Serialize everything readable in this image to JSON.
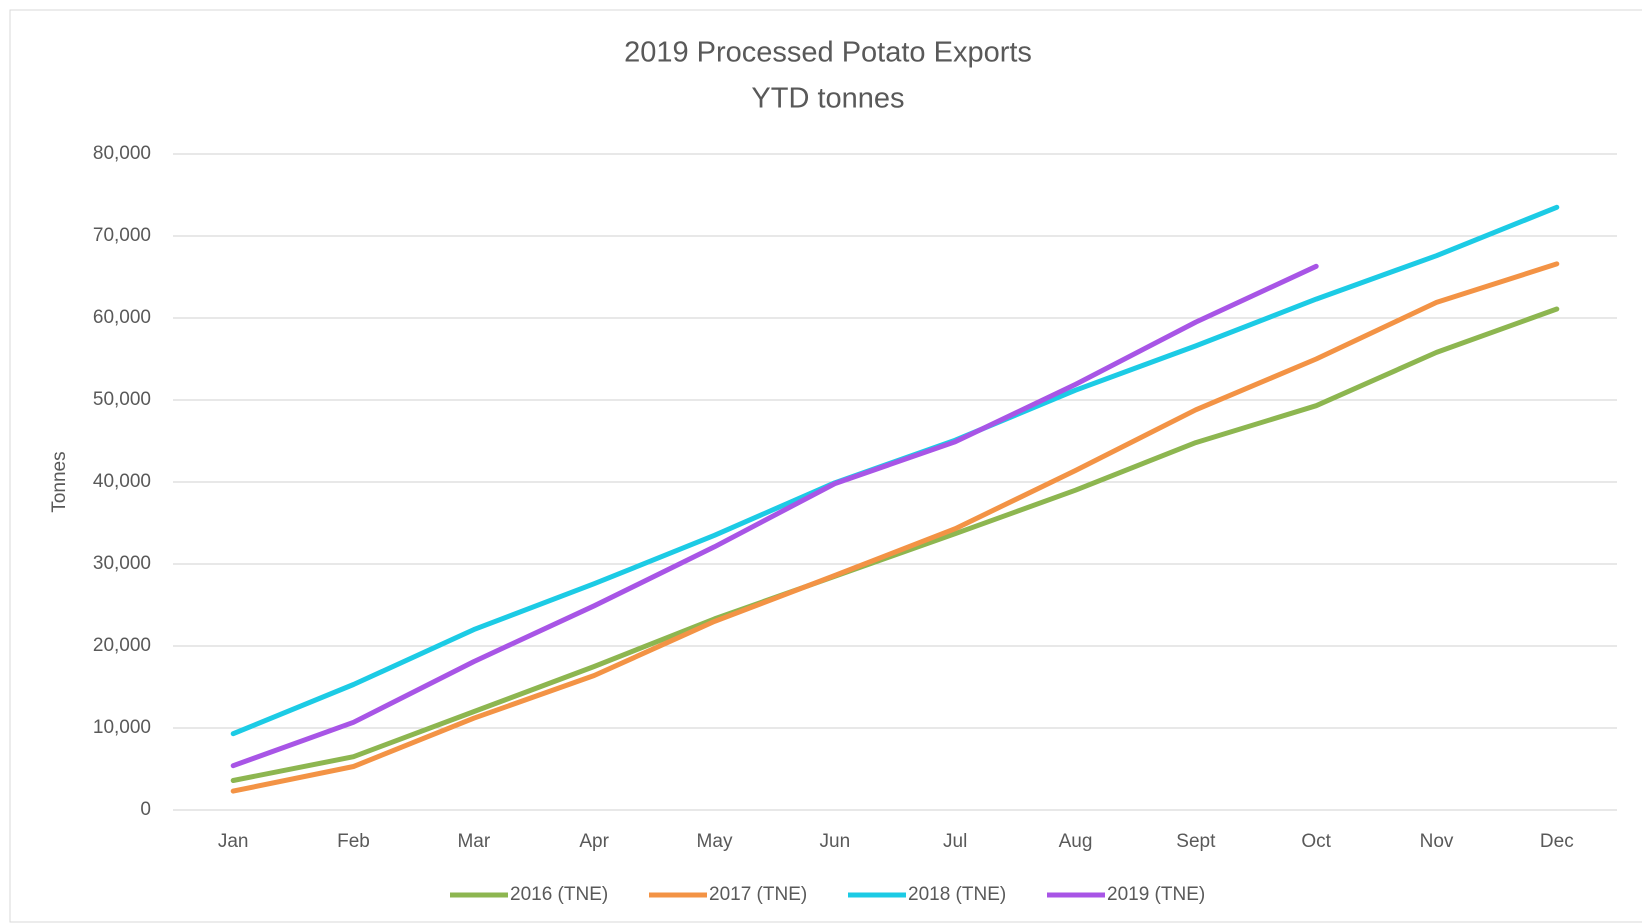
{
  "chart_data": {
    "type": "line",
    "title": "2019 Processed Potato Exports",
    "subtitle": "YTD tonnes",
    "y_label": "Tonnes",
    "categories": [
      "Jan",
      "Feb",
      "Mar",
      "Apr",
      "May",
      "Jun",
      "Jul",
      "Aug",
      "Sept",
      "Oct",
      "Nov",
      "Dec"
    ],
    "series": [
      {
        "name": "2016 (TNE)",
        "color": "#8db650",
        "values": [
          3600,
          6500,
          12000,
          17500,
          23300,
          28500,
          33700,
          39000,
          44800,
          49300,
          55800,
          61100
        ]
      },
      {
        "name": "2017 (TNE)",
        "color": "#f39345",
        "values": [
          2300,
          5300,
          11200,
          16400,
          23000,
          28600,
          34300,
          41400,
          48800,
          55000,
          61900,
          66600
        ]
      },
      {
        "name": "2018 (TNE)",
        "color": "#1ccbe5",
        "values": [
          9300,
          15300,
          22000,
          27600,
          33500,
          39900,
          45100,
          51200,
          56600,
          62300,
          67600,
          73500
        ]
      },
      {
        "name": "2019 (TNE)",
        "color": "#a855e6",
        "values": [
          5400,
          10700,
          18100,
          24900,
          32100,
          39800,
          44900,
          51900,
          59500,
          66300,
          null,
          null
        ]
      }
    ],
    "ylim": [
      0,
      80000
    ],
    "yticks": [
      0,
      {
        "value": 10000,
        "label": "10,000"
      },
      {
        "value": 20000,
        "label": "20,000"
      },
      {
        "value": 30000,
        "label": "30,000"
      },
      {
        "value": 40000,
        "label": "40,000"
      },
      {
        "value": 50000,
        "label": "50,000"
      },
      {
        "value": 60000,
        "label": "60,000"
      },
      {
        "value": 70000,
        "label": "70,000"
      },
      {
        "value": 80000,
        "label": "80,000"
      }
    ],
    "grid": true,
    "legend": "bottom"
  }
}
